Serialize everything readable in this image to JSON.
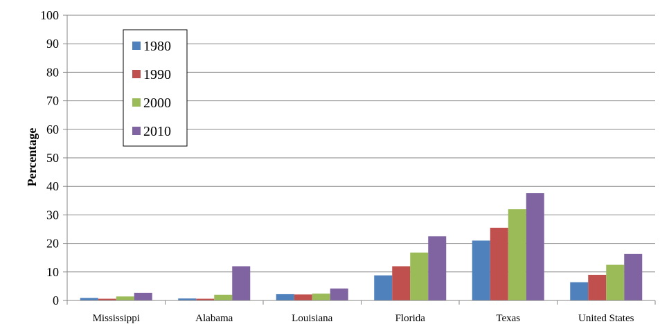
{
  "chart_data": {
    "type": "bar",
    "categories": [
      "Mississippi",
      "Alabama",
      "Louisiana",
      "Florida",
      "Texas",
      "United States"
    ],
    "series": [
      {
        "name": "1980",
        "color": "#4F81BD",
        "values": [
          0.9,
          0.7,
          2.2,
          8.8,
          21.0,
          6.4
        ]
      },
      {
        "name": "1990",
        "color": "#C0504D",
        "values": [
          0.6,
          0.6,
          2.1,
          12.0,
          25.5,
          9.0
        ]
      },
      {
        "name": "2000",
        "color": "#9BBB59",
        "values": [
          1.4,
          2.0,
          2.4,
          16.8,
          32.0,
          12.5
        ]
      },
      {
        "name": "2010",
        "color": "#8064A2",
        "values": [
          2.7,
          12.0,
          4.2,
          22.5,
          37.6,
          16.3
        ]
      }
    ],
    "title": "",
    "xlabel": "",
    "ylabel": "Percentage",
    "ylim": [
      0,
      100
    ],
    "yticks": [
      0,
      10,
      20,
      30,
      40,
      50,
      60,
      70,
      80,
      90,
      100
    ],
    "grid": true,
    "legend_position": "top-left"
  }
}
